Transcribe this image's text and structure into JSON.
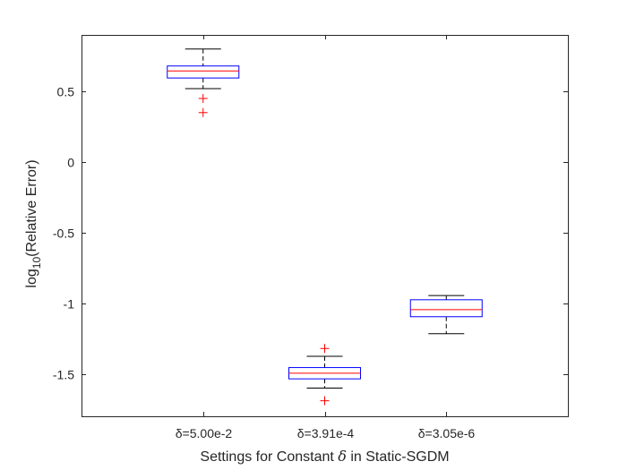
{
  "chart_data": {
    "type": "boxplot",
    "title": "",
    "xlabel": {
      "prefix": "Settings for Constant ",
      "symbol": "δ",
      "suffix": " in Static-SGDM"
    },
    "ylabel": {
      "prefix": "log",
      "subscript": "10",
      "suffix": "(Relative Error)"
    },
    "ylim": [
      -1.8,
      0.9
    ],
    "yticks": [
      0.5,
      0,
      -0.5,
      -1,
      -1.5
    ],
    "ytick_labels": [
      "0.5",
      "0",
      "-0.5",
      "-1",
      "-1.5"
    ],
    "categories": [
      "δ=5.00e-2",
      "δ=3.91e-4",
      "δ=3.05e-6"
    ],
    "boxes": [
      {
        "category": "δ=5.00e-2",
        "whisker_low": 0.52,
        "q1": 0.595,
        "median": 0.645,
        "q3": 0.68,
        "whisker_high": 0.8,
        "outliers": [
          0.45,
          0.35
        ]
      },
      {
        "category": "δ=3.91e-4",
        "whisker_low": -1.6,
        "q1": -1.535,
        "median": -1.495,
        "q3": -1.455,
        "whisker_high": -1.375,
        "outliers": [
          -1.32,
          -1.69
        ]
      },
      {
        "category": "δ=3.05e-6",
        "whisker_low": -1.215,
        "q1": -1.095,
        "median": -1.045,
        "q3": -0.975,
        "whisker_high": -0.945,
        "outliers": []
      }
    ],
    "colors": {
      "box": "#0000ff",
      "median": "#ff0000",
      "whisker": "#000000",
      "outlier": "#ff0000",
      "axis": "#262626"
    }
  }
}
